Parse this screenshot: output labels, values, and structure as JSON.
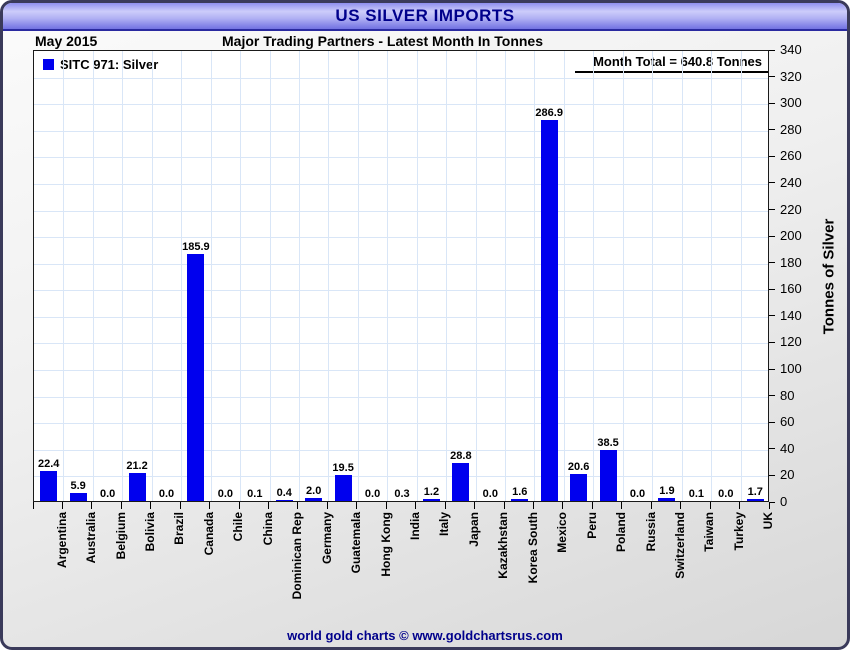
{
  "header": {
    "title": "US SILVER IMPORTS"
  },
  "subheader": {
    "date": "May 2015",
    "subtitle": "Major Trading Partners - Latest Month In Tonnes"
  },
  "legend": {
    "label": "SITC 971: Silver"
  },
  "annotation": {
    "month_total": "Month Total = 640.8 Tonnes"
  },
  "footer": {
    "credit": "world gold charts © www.goldchartsrus.com"
  },
  "colors": {
    "bar": "#0000ee",
    "title_navy": "#00008b",
    "gridline": "#d9e6f7",
    "header_gradient_light": "#ccccfa",
    "header_gradient_dark": "#7272e2"
  },
  "chart_data": {
    "type": "bar",
    "title": "US SILVER IMPORTS",
    "subtitle": "Major Trading Partners - Latest Month In Tonnes",
    "period": "May 2015",
    "series_name": "SITC 971: Silver",
    "month_total": 640.8,
    "categories": [
      "Argentina",
      "Australia",
      "Belgium",
      "Bolivia",
      "Brazil",
      "Canada",
      "Chile",
      "China",
      "Dominican Rep",
      "Germany",
      "Guatemala",
      "Hong Kong",
      "India",
      "Italy",
      "Japan",
      "Kazakhstan",
      "Korea South",
      "Mexico",
      "Peru",
      "Poland",
      "Russia",
      "Switzerland",
      "Taiwan",
      "Turkey",
      "UK"
    ],
    "values": [
      22.4,
      5.9,
      0.0,
      21.2,
      0.0,
      185.9,
      0.0,
      0.1,
      0.4,
      2.0,
      19.5,
      0.0,
      0.3,
      1.2,
      28.8,
      0.0,
      1.6,
      286.9,
      20.6,
      38.5,
      0.0,
      1.9,
      0.1,
      0.0,
      1.7
    ],
    "xlabel": "",
    "ylabel": "Tonnes of Silver",
    "ylim": [
      0,
      340
    ],
    "ytick_step": 20,
    "yaxis_side": "right",
    "grid": true,
    "value_labels": true,
    "legend_position": "top-left"
  }
}
